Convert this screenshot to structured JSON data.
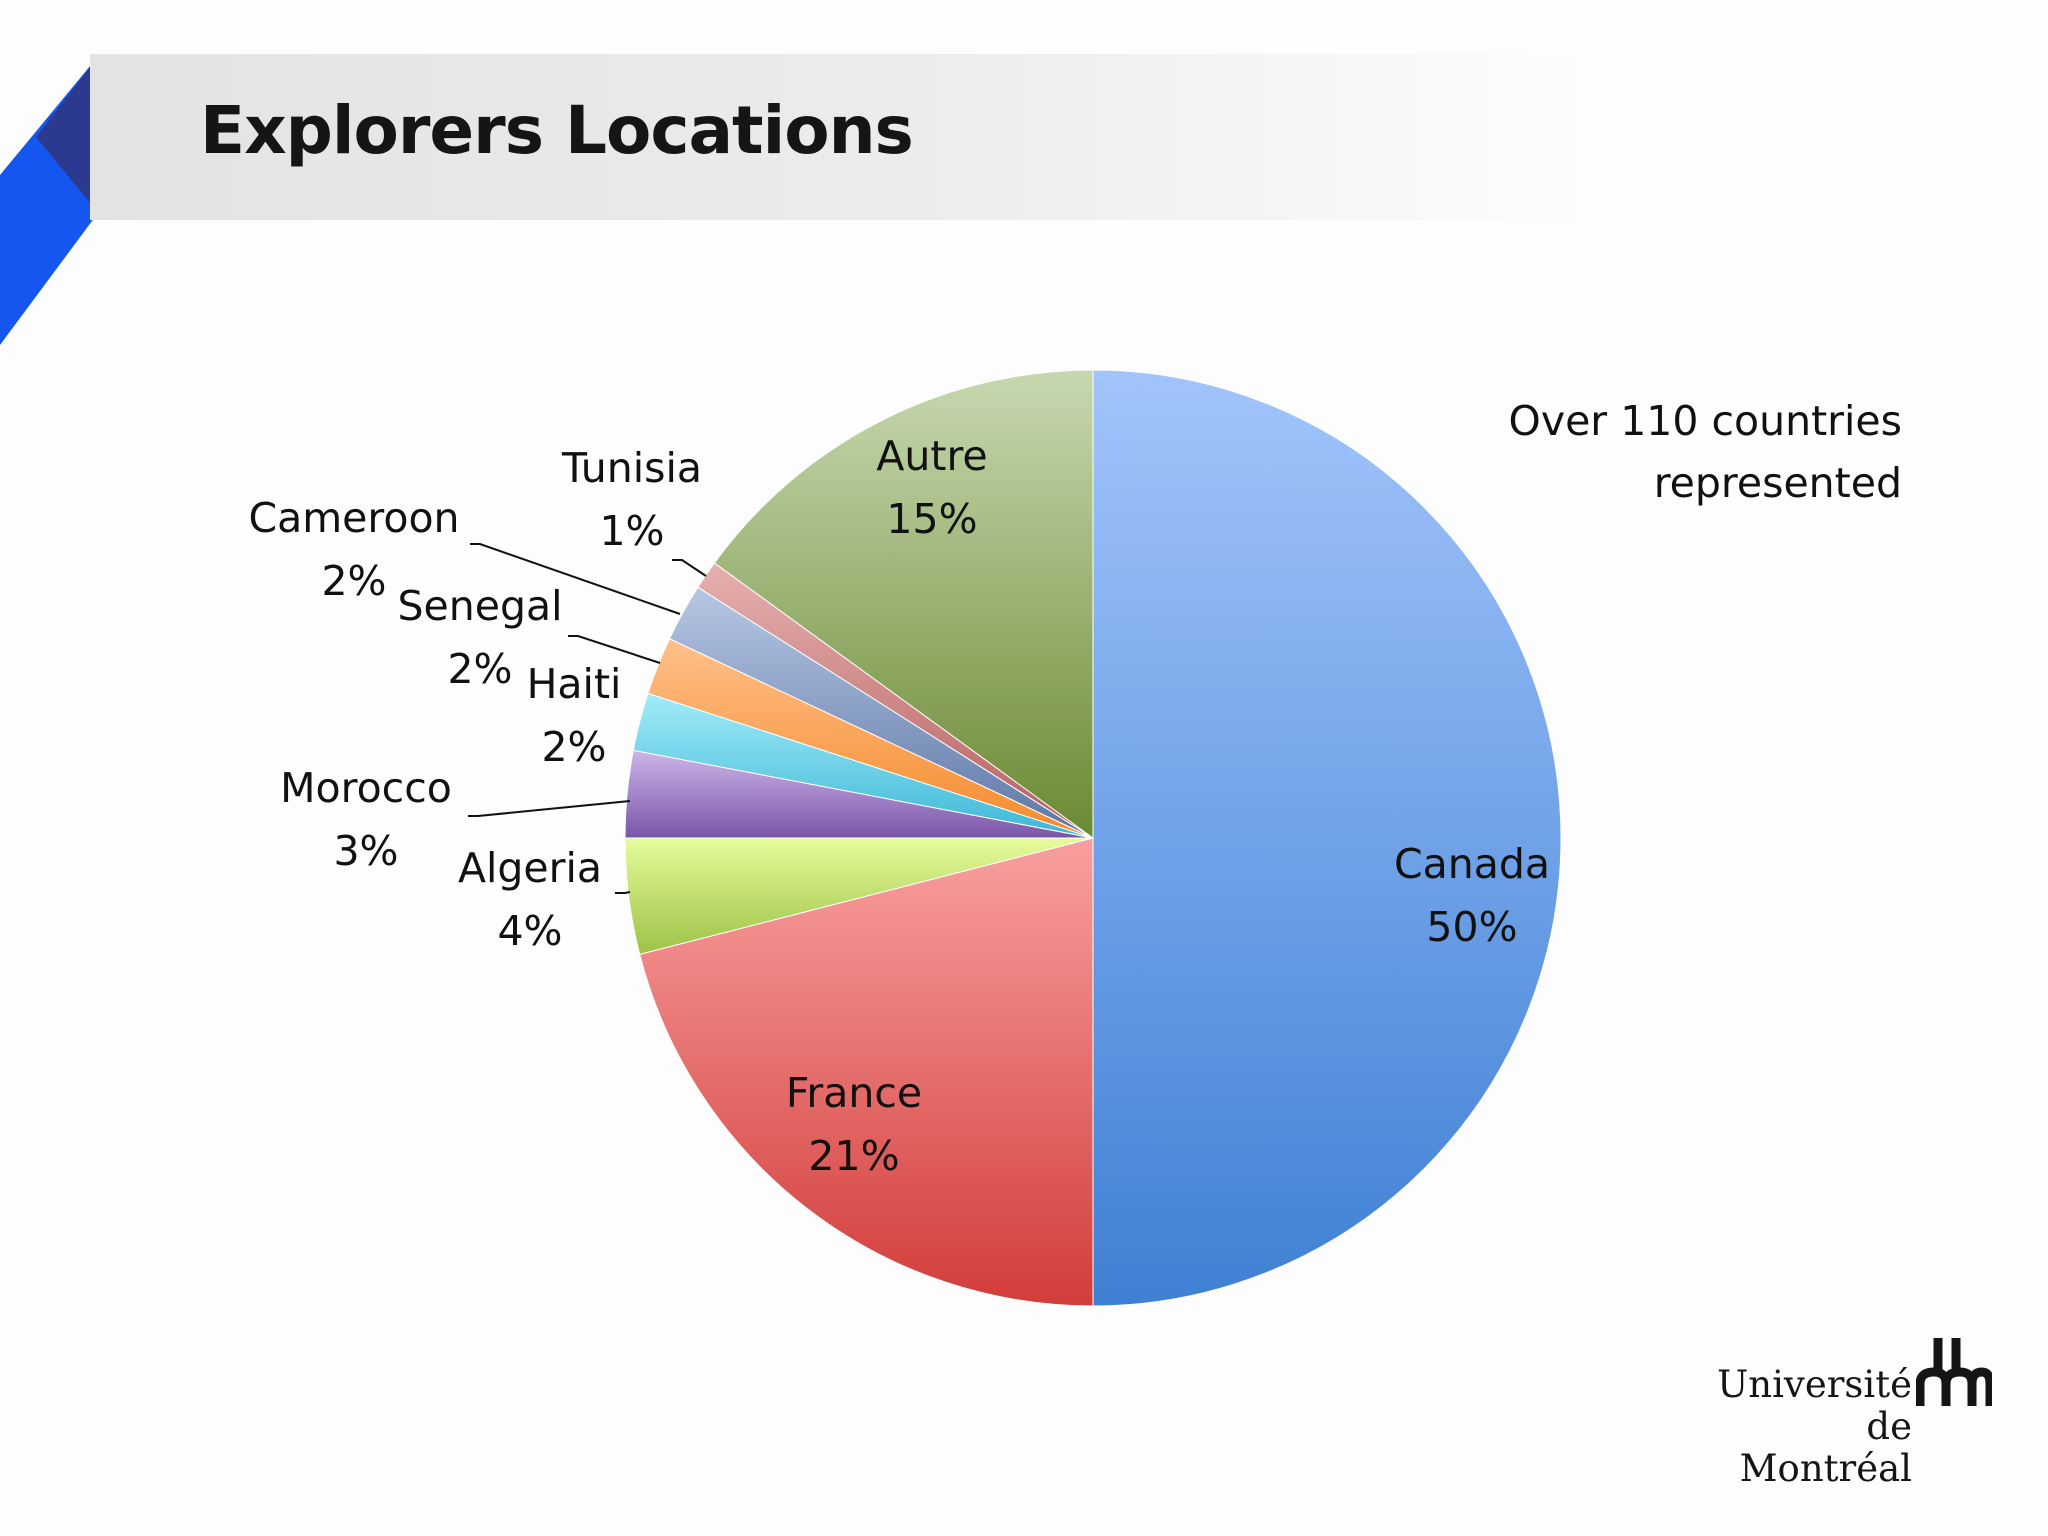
{
  "slide": {
    "title": "Explorers Locations",
    "note_line1": "Over 110 countries",
    "note_line2": "represented"
  },
  "logo": {
    "line1": "Université",
    "line2": "de Montréal"
  },
  "colors": {
    "accent_blue": "#1556f0",
    "accent_navy": "#2b3a8f",
    "accent_pink": "#e42f8a"
  },
  "chart_data": {
    "type": "pie",
    "title": "",
    "slices": [
      {
        "label": "Canada",
        "value": 50,
        "value_label": "50%",
        "color_top": "#a2c4fb",
        "color_bottom": "#3f80d4"
      },
      {
        "label": "France",
        "value": 21,
        "value_label": "21%",
        "color_top": "#f8a09f",
        "color_bottom": "#d23d3a"
      },
      {
        "label": "Algeria",
        "value": 4,
        "value_label": "4%",
        "color_top": "#e6fc9c",
        "color_bottom": "#9dc245"
      },
      {
        "label": "Morocco",
        "value": 3,
        "value_label": "3%",
        "color_top": "#cdb6ea",
        "color_bottom": "#7a55a8"
      },
      {
        "label": "Haiti",
        "value": 2,
        "value_label": "2%",
        "color_top": "#a2ecf8",
        "color_bottom": "#3cb6d6"
      },
      {
        "label": "Senegal",
        "value": 2,
        "value_label": "2%",
        "color_top": "#ffc08a",
        "color_bottom": "#f58a2a"
      },
      {
        "label": "Cameroon",
        "value": 2,
        "value_label": "2%",
        "color_top": "#b7c7e3",
        "color_bottom": "#5c76a6"
      },
      {
        "label": "Tunisia",
        "value": 1,
        "value_label": "1%",
        "color_top": "#e6b0b0",
        "color_bottom": "#b5605e"
      },
      {
        "label": "Autre",
        "value": 15,
        "value_label": "15%",
        "color_top": "#c7d8b0",
        "color_bottom": "#6b8a33"
      }
    ]
  }
}
